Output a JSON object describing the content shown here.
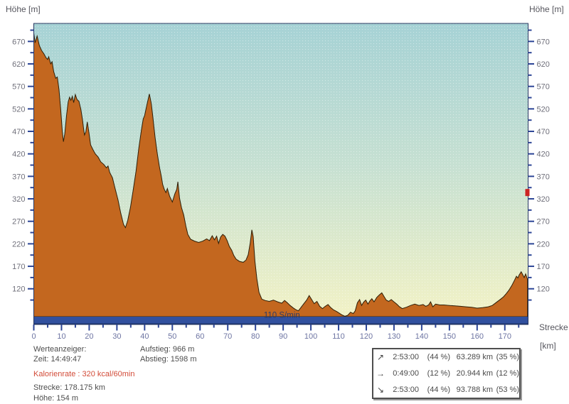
{
  "chart": {
    "y_axis_title_left": "Höhe [m]",
    "y_axis_title_right": "Höhe [m]",
    "x_axis_title_line1": "Strecke",
    "x_axis_title_line2": "[km]"
  },
  "chart_data": {
    "type": "area",
    "title": "",
    "xlabel": "Strecke [km]",
    "ylabel": "Höhe [m]",
    "xlim": [
      0,
      178.4
    ],
    "ylim": [
      58,
      710
    ],
    "grid": false,
    "y_ticks_major": [
      670,
      620,
      570,
      520,
      470,
      420,
      370,
      320,
      270,
      220,
      170,
      120
    ],
    "y_ticks_minor": [
      695,
      645,
      595,
      545,
      495,
      445,
      395,
      345,
      295,
      245,
      195,
      145,
      95
    ],
    "x_ticks_major": [
      0,
      10,
      20,
      30,
      40,
      50,
      60,
      70,
      80,
      90,
      100,
      110,
      120,
      130,
      140,
      150,
      160,
      170
    ],
    "x_ticks_minor": [
      5,
      15,
      25,
      35,
      45,
      55,
      65,
      75,
      85,
      95,
      105,
      115,
      125,
      135,
      145,
      155,
      165,
      175
    ],
    "annotation": {
      "text": "110 S/min",
      "x_km": 83,
      "y_m": 62
    },
    "right_axis_marker": {
      "value_m": 334
    },
    "series": [
      {
        "name": "elevation-profile",
        "x": [
          0,
          0.5,
          1.2,
          2,
          2.8,
          3.6,
          4.4,
          5,
          5.4,
          6.1,
          6.6,
          7.2,
          7.9,
          8.5,
          9.1,
          9.7,
          10.3,
          10.7,
          11.2,
          11.8,
          12.4,
          12.9,
          13.4,
          13.9,
          14.4,
          15,
          15.6,
          16.3,
          17,
          17.6,
          18,
          18.3,
          18.8,
          19.3,
          19.9,
          20.5,
          21.3,
          22.2,
          23.2,
          24.2,
          25.2,
          26.2,
          26.8,
          27.4,
          28.4,
          29.4,
          30.4,
          31.4,
          32.4,
          33.1,
          33.9,
          34.9,
          35.9,
          36.9,
          37.9,
          38.8,
          39.5,
          40,
          40.9,
          41.7,
          42.4,
          43,
          43.8,
          44.6,
          45.4,
          46,
          46.5,
          47.1,
          47.7,
          48.2,
          49,
          50,
          50.9,
          51.6,
          52,
          52.6,
          53.3,
          54.1,
          54.9,
          55.6,
          56.6,
          58,
          59.5,
          61,
          62.4,
          63.4,
          64.4,
          65.2,
          66,
          66.7,
          67.4,
          68.2,
          69,
          69.8,
          70.6,
          71.4,
          72.2,
          73,
          74.2,
          75.6,
          76.6,
          77.4,
          78.1,
          78.7,
          79.2,
          79.8,
          80.5,
          81.3,
          82.3,
          83.5,
          85,
          86.5,
          88,
          89.5,
          90.5,
          91.5,
          92.5,
          93.5,
          94.5,
          95.5,
          96.5,
          97.5,
          98.5,
          99.4,
          100.3,
          101.2,
          102.2,
          103.2,
          104.2,
          105.2,
          106.2,
          107.2,
          108.2,
          109.2,
          110.2,
          111.2,
          112.3,
          113.3,
          114.3,
          115.3,
          116,
          116.8,
          117.6,
          118.3,
          119,
          119.8,
          120.6,
          121.3,
          122,
          122.8,
          123.8,
          124.8,
          125.6,
          126.4,
          127.2,
          128.1,
          129,
          130,
          131,
          132,
          133,
          134.5,
          136,
          137.5,
          139,
          140.5,
          141.5,
          142.5,
          143.2,
          144,
          145,
          146.5,
          148,
          150,
          152,
          154,
          156,
          158,
          160,
          162,
          164,
          165.5,
          167,
          168.5,
          169.5,
          170.5,
          171.5,
          172.5,
          173.5,
          174.2,
          174.7,
          175.2,
          175.9,
          176.5,
          177,
          177.5,
          178.2
        ],
        "y": [
          688,
          667,
          682,
          661,
          650,
          643,
          634,
          630,
          636,
          620,
          625,
          603,
          588,
          591,
          562,
          520,
          470,
          447,
          465,
          505,
          535,
          546,
          539,
          548,
          534,
          552,
          541,
          537,
          519,
          495,
          475,
          462,
          469,
          491,
          468,
          440,
          430,
          420,
          413,
          402,
          397,
          389,
          393,
          379,
          367,
          342,
          318,
          288,
          263,
          256,
          272,
          302,
          341,
          382,
          432,
          472,
          498,
          505,
          531,
          553,
          532,
          501,
          456,
          419,
          389,
          371,
          352,
          341,
          334,
          343,
          326,
          313,
          331,
          341,
          358,
          322,
          301,
          284,
          259,
          241,
          230,
          226,
          223,
          226,
          231,
          227,
          238,
          229,
          237,
          221,
          235,
          241,
          237,
          227,
          214,
          206,
          194,
          186,
          181,
          179,
          184,
          196,
          222,
          251,
          236,
          182,
          143,
          112,
          97,
          94,
          92,
          95,
          91,
          88,
          94,
          89,
          83,
          78,
          74,
          71,
          79,
          87,
          95,
          105,
          96,
          87,
          92,
          81,
          76,
          81,
          85,
          78,
          73,
          70,
          66,
          62,
          59,
          61,
          68,
          65,
          71,
          89,
          96,
          83,
          90,
          95,
          86,
          93,
          98,
          91,
          101,
          107,
          111,
          103,
          95,
          92,
          96,
          91,
          86,
          80,
          76,
          79,
          83,
          86,
          83,
          85,
          81,
          84,
          91,
          80,
          86,
          84,
          84,
          83,
          82,
          81,
          80,
          79,
          77,
          78,
          80,
          83,
          90,
          97,
          102,
          109,
          117,
          127,
          139,
          148,
          144,
          151,
          158,
          151,
          145,
          153,
          141
        ]
      }
    ],
    "legend": null
  },
  "colors": {
    "profile_fill": "#c3671f",
    "profile_stroke": "#2e1f08",
    "bottom_bar": "#31509e",
    "bottom_bar_edge": "#1e356e",
    "tick": "#2c4596",
    "y_tick_label": "#6f6f7a",
    "x_tick_label": "#6d74a2",
    "plot_border": "#25355f",
    "gradient_top": "#a6d2d5",
    "gradient_mid": "#c6e0d2",
    "gradient_bottom": "#f2f2c6",
    "annotation_text": "#2b3b68",
    "right_axis_marker": "#cc2222",
    "kalorien_red": "#d24b38"
  },
  "info_panel": {
    "line1": "Werteanzeiger:",
    "line2": "Zeit: 14:49:47",
    "line3": "Kalorienrate : 320 kcal/60min",
    "line4": "Strecke: 178.175 km",
    "line5": "Höhe: 154 m"
  },
  "climb_panel": {
    "ascent": "Aufstieg: 966 m",
    "descent": "Abstieg: 1598 m"
  },
  "stats_box": {
    "rows": [
      {
        "arrow": "↗",
        "time": "2:53:00",
        "time_pct": "(44 %)",
        "distance": "63.289 km",
        "distance_pct": "(35 %)"
      },
      {
        "arrow": "→",
        "time": "0:49:00",
        "time_pct": "(12 %)",
        "distance": "20.944 km",
        "distance_pct": "(12 %)"
      },
      {
        "arrow": "↘",
        "time": "2:53:00",
        "time_pct": "(44 %)",
        "distance": "93.788 km",
        "distance_pct": "(53 %)"
      }
    ]
  }
}
